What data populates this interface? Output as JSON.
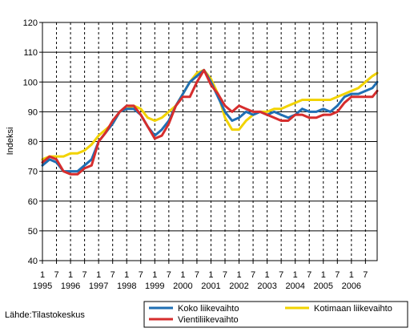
{
  "source_text": "Lähde:Tilastokeskus",
  "chart_data": {
    "type": "line",
    "ylabel": "Indeksi",
    "ylim": [
      40,
      120
    ],
    "yticks": [
      40,
      50,
      60,
      70,
      80,
      90,
      100,
      110,
      120
    ],
    "xlim": [
      1995.0,
      2006.917
    ],
    "month_tick_labels": [
      "1",
      "7",
      "1",
      "7",
      "1",
      "7",
      "1",
      "7",
      "1",
      "7",
      "1",
      "7",
      "1",
      "7",
      "1",
      "7",
      "1",
      "7",
      "1",
      "7",
      "1",
      "7",
      "1",
      "7"
    ],
    "year_labels": [
      "1995",
      "1996",
      "1997",
      "1998",
      "1999",
      "2000",
      "2001",
      "2002",
      "2003",
      "2004",
      "2005",
      "2006"
    ],
    "grid": "horizontal solid, vertical dashed at each January and July",
    "legend_position": "bottom-right",
    "series": [
      {
        "name": "Koko liikevaihto",
        "color": "#1f6fb4",
        "x": [
          1995.0,
          1995.25,
          1995.5,
          1995.75,
          1996.0,
          1996.25,
          1996.5,
          1996.75,
          1997.0,
          1997.25,
          1997.5,
          1997.75,
          1998.0,
          1998.25,
          1998.5,
          1998.75,
          1999.0,
          1999.25,
          1999.5,
          1999.75,
          2000.0,
          2000.25,
          2000.5,
          2000.75,
          2001.0,
          2001.25,
          2001.5,
          2001.75,
          2002.0,
          2002.25,
          2002.5,
          2002.75,
          2003.0,
          2003.25,
          2003.5,
          2003.75,
          2004.0,
          2004.25,
          2004.5,
          2004.75,
          2005.0,
          2005.25,
          2005.5,
          2005.75,
          2006.0,
          2006.25,
          2006.5,
          2006.75,
          2006.917
        ],
        "values": [
          72,
          74,
          73,
          70,
          70,
          70,
          72,
          74,
          80,
          83,
          86,
          90,
          91,
          91,
          89,
          85,
          82,
          84,
          87,
          92,
          96,
          100,
          102,
          104,
          100,
          95,
          90,
          87,
          88,
          90,
          89,
          90,
          89,
          90,
          89,
          88,
          89,
          91,
          90,
          90,
          91,
          90,
          92,
          95,
          96,
          96,
          97,
          98,
          100
        ]
      },
      {
        "name": "Kotimaan liikevaihto",
        "color": "#f2d300",
        "x": [
          1995.0,
          1995.25,
          1995.5,
          1995.75,
          1996.0,
          1996.25,
          1996.5,
          1996.75,
          1997.0,
          1997.25,
          1997.5,
          1997.75,
          1998.0,
          1998.25,
          1998.5,
          1998.75,
          1999.0,
          1999.25,
          1999.5,
          1999.75,
          2000.0,
          2000.25,
          2000.5,
          2000.75,
          2001.0,
          2001.25,
          2001.5,
          2001.75,
          2002.0,
          2002.25,
          2002.5,
          2002.75,
          2003.0,
          2003.25,
          2003.5,
          2003.75,
          2004.0,
          2004.25,
          2004.5,
          2004.75,
          2005.0,
          2005.25,
          2005.5,
          2005.75,
          2006.0,
          2006.25,
          2006.5,
          2006.75,
          2006.917
        ],
        "values": [
          74,
          75,
          75,
          75,
          76,
          76,
          77,
          79,
          82,
          84,
          86,
          90,
          91,
          92,
          91,
          88,
          87,
          88,
          90,
          92,
          96,
          100,
          103,
          104,
          101,
          96,
          88,
          84,
          84,
          87,
          89,
          90,
          90,
          91,
          91,
          92,
          93,
          94,
          94,
          94,
          94,
          94,
          95,
          96,
          97,
          98,
          100,
          102,
          103
        ]
      },
      {
        "name": "Vientiliikevaihto",
        "color": "#d62d2d",
        "x": [
          1995.0,
          1995.25,
          1995.5,
          1995.75,
          1996.0,
          1996.25,
          1996.5,
          1996.75,
          1997.0,
          1997.25,
          1997.5,
          1997.75,
          1998.0,
          1998.25,
          1998.5,
          1998.75,
          1999.0,
          1999.25,
          1999.5,
          1999.75,
          2000.0,
          2000.25,
          2000.5,
          2000.75,
          2001.0,
          2001.25,
          2001.5,
          2001.75,
          2002.0,
          2002.25,
          2002.5,
          2002.75,
          2003.0,
          2003.25,
          2003.5,
          2003.75,
          2004.0,
          2004.25,
          2004.5,
          2004.75,
          2005.0,
          2005.25,
          2005.5,
          2005.75,
          2006.0,
          2006.25,
          2006.5,
          2006.75,
          2006.917
        ],
        "values": [
          73,
          75,
          74,
          70,
          69,
          69,
          71,
          72,
          80,
          83,
          87,
          90,
          92,
          92,
          89,
          85,
          81,
          82,
          86,
          92,
          95,
          95,
          100,
          104,
          99,
          96,
          92,
          90,
          92,
          91,
          90,
          90,
          89,
          88,
          87,
          87,
          89,
          89,
          88,
          88,
          89,
          89,
          90,
          93,
          95,
          95,
          95,
          95,
          97
        ]
      }
    ]
  }
}
